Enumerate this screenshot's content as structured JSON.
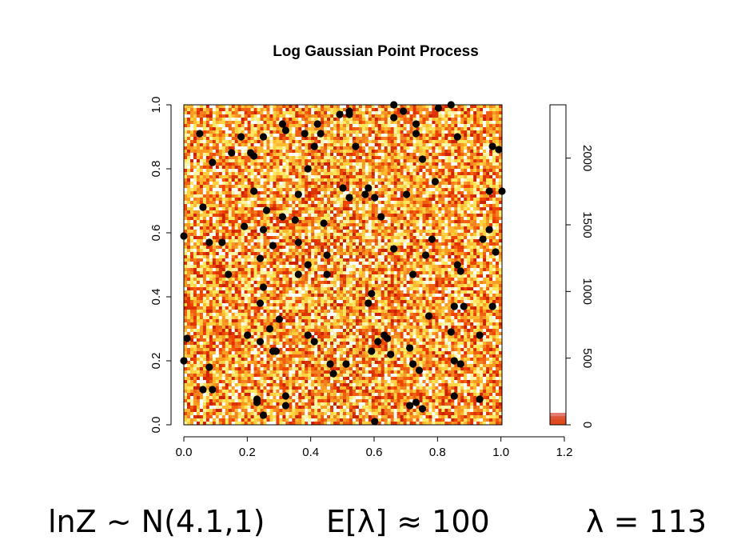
{
  "chart_data": {
    "type": "scatter",
    "title": "Log Gaussian Point Process",
    "xlabel": "",
    "ylabel": "",
    "xlim": [
      0,
      1.2
    ],
    "ylim": [
      0,
      1.0
    ],
    "x_ticks": [
      "0.0",
      "0.2",
      "0.4",
      "0.6",
      "0.8",
      "1.0",
      "1.2"
    ],
    "y_ticks": [
      "0.0",
      "0.2",
      "0.4",
      "0.6",
      "0.8",
      "1.0"
    ],
    "background": "heatmap of intensity, heat colour scale (red-orange-yellow-white)",
    "grid_cells": 100,
    "colorbar": {
      "ticks": [
        "0",
        "500",
        "1000",
        "1500",
        "2000"
      ],
      "range": [
        0,
        2400
      ],
      "x_position": 1.2
    },
    "points": [
      [
        0.0,
        0.59
      ],
      [
        0.0,
        0.2
      ],
      [
        0.01,
        0.27
      ],
      [
        0.05,
        0.91
      ],
      [
        0.06,
        0.68
      ],
      [
        0.06,
        0.11
      ],
      [
        0.08,
        0.57
      ],
      [
        0.09,
        0.82
      ],
      [
        0.08,
        0.18
      ],
      [
        0.09,
        0.11
      ],
      [
        0.12,
        0.57
      ],
      [
        0.14,
        0.47
      ],
      [
        0.15,
        0.85
      ],
      [
        0.18,
        0.9
      ],
      [
        0.19,
        0.62
      ],
      [
        0.2,
        0.28
      ],
      [
        0.21,
        0.85
      ],
      [
        0.22,
        0.84
      ],
      [
        0.22,
        0.73
      ],
      [
        0.23,
        0.07
      ],
      [
        0.23,
        0.08
      ],
      [
        0.24,
        0.26
      ],
      [
        0.24,
        0.38
      ],
      [
        0.24,
        0.52
      ],
      [
        0.25,
        0.61
      ],
      [
        0.25,
        0.43
      ],
      [
        0.25,
        0.9
      ],
      [
        0.26,
        0.67
      ],
      [
        0.25,
        0.03
      ],
      [
        0.27,
        0.3
      ],
      [
        0.28,
        0.56
      ],
      [
        0.28,
        0.23
      ],
      [
        0.29,
        0.23
      ],
      [
        0.3,
        0.33
      ],
      [
        0.31,
        0.65
      ],
      [
        0.31,
        0.94
      ],
      [
        0.32,
        0.92
      ],
      [
        0.32,
        0.09
      ],
      [
        0.32,
        0.06
      ],
      [
        0.35,
        0.64
      ],
      [
        0.36,
        0.57
      ],
      [
        0.36,
        0.72
      ],
      [
        0.36,
        0.47
      ],
      [
        0.38,
        0.91
      ],
      [
        0.39,
        0.8
      ],
      [
        0.39,
        0.5
      ],
      [
        0.39,
        0.28
      ],
      [
        0.41,
        0.87
      ],
      [
        0.41,
        0.26
      ],
      [
        0.42,
        0.94
      ],
      [
        0.43,
        0.91
      ],
      [
        0.44,
        0.63
      ],
      [
        0.45,
        0.53
      ],
      [
        0.45,
        0.47
      ],
      [
        0.46,
        0.19
      ],
      [
        0.47,
        0.16
      ],
      [
        0.49,
        0.97
      ],
      [
        0.5,
        0.74
      ],
      [
        0.51,
        0.19
      ],
      [
        0.52,
        0.97
      ],
      [
        0.52,
        0.71
      ],
      [
        0.52,
        0.98
      ],
      [
        0.54,
        0.87
      ],
      [
        0.57,
        0.72
      ],
      [
        0.58,
        0.74
      ],
      [
        0.58,
        0.38
      ],
      [
        0.59,
        0.23
      ],
      [
        0.59,
        0.41
      ],
      [
        0.6,
        0.71
      ],
      [
        0.6,
        0.01
      ],
      [
        0.61,
        0.26
      ],
      [
        0.62,
        0.65
      ],
      [
        0.63,
        0.28
      ],
      [
        0.64,
        0.27
      ],
      [
        0.65,
        0.22
      ],
      [
        0.66,
        1.0
      ],
      [
        0.66,
        0.55
      ],
      [
        0.66,
        0.96
      ],
      [
        0.69,
        0.98
      ],
      [
        0.7,
        0.72
      ],
      [
        0.71,
        0.24
      ],
      [
        0.71,
        0.06
      ],
      [
        0.72,
        0.47
      ],
      [
        0.72,
        0.19
      ],
      [
        0.73,
        0.94
      ],
      [
        0.73,
        0.91
      ],
      [
        0.73,
        0.07
      ],
      [
        0.74,
        0.17
      ],
      [
        0.75,
        0.83
      ],
      [
        0.75,
        0.05
      ],
      [
        0.76,
        0.53
      ],
      [
        0.77,
        0.34
      ],
      [
        0.78,
        0.58
      ],
      [
        0.79,
        0.76
      ],
      [
        0.8,
        0.99
      ],
      [
        0.84,
        0.29
      ],
      [
        0.84,
        1.0
      ],
      [
        0.85,
        0.37
      ],
      [
        0.85,
        0.2
      ],
      [
        0.85,
        0.09
      ],
      [
        0.86,
        0.9
      ],
      [
        0.86,
        0.5
      ],
      [
        0.87,
        0.48
      ],
      [
        0.87,
        0.19
      ],
      [
        0.88,
        0.37
      ],
      [
        0.93,
        0.28
      ],
      [
        0.93,
        0.08
      ],
      [
        0.94,
        0.58
      ],
      [
        0.96,
        0.61
      ],
      [
        0.96,
        0.73
      ],
      [
        0.97,
        0.37
      ],
      [
        0.97,
        0.87
      ],
      [
        0.98,
        0.54
      ],
      [
        0.99,
        0.86
      ],
      [
        1.0,
        0.73
      ]
    ]
  },
  "footer": {
    "left": "lnZ ~ N(4.1,1)",
    "center": "E[λ] ≈ 100",
    "right": "λ = 113"
  }
}
